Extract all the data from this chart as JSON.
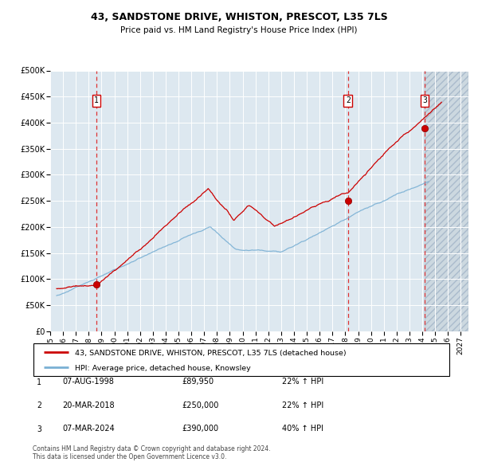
{
  "title": "43, SANDSTONE DRIVE, WHISTON, PRESCOT, L35 7LS",
  "subtitle": "Price paid vs. HM Land Registry's House Price Index (HPI)",
  "legend_line1": "43, SANDSTONE DRIVE, WHISTON, PRESCOT, L35 7LS (detached house)",
  "legend_line2": "HPI: Average price, detached house, Knowsley",
  "footnote1": "Contains HM Land Registry data © Crown copyright and database right 2024.",
  "footnote2": "This data is licensed under the Open Government Licence v3.0.",
  "transactions": [
    {
      "id": 1,
      "date": "07-AUG-1998",
      "price": 89950,
      "pct": "22%",
      "dir": "↑"
    },
    {
      "id": 2,
      "date": "20-MAR-2018",
      "price": 250000,
      "pct": "22%",
      "dir": "↑"
    },
    {
      "id": 3,
      "date": "07-MAR-2024",
      "price": 390000,
      "pct": "40%",
      "dir": "↑"
    }
  ],
  "transaction_dates_num": [
    1998.6,
    2018.21,
    2024.18
  ],
  "transaction_prices": [
    89950,
    250000,
    390000
  ],
  "plot_color_red": "#cc0000",
  "plot_color_blue": "#7ab0d4",
  "background_color": "#dde8f0",
  "dashed_line_color": "#dd3333",
  "ylim": [
    0,
    500000
  ],
  "xlim_start": 1995.4,
  "xlim_end": 2027.6,
  "future_start": 2024.18,
  "xlabel_years": [
    1995,
    1996,
    1997,
    1998,
    1999,
    2000,
    2001,
    2002,
    2003,
    2004,
    2005,
    2006,
    2007,
    2008,
    2009,
    2010,
    2011,
    2012,
    2013,
    2014,
    2015,
    2016,
    2017,
    2018,
    2019,
    2020,
    2021,
    2022,
    2023,
    2024,
    2025,
    2026,
    2027
  ]
}
